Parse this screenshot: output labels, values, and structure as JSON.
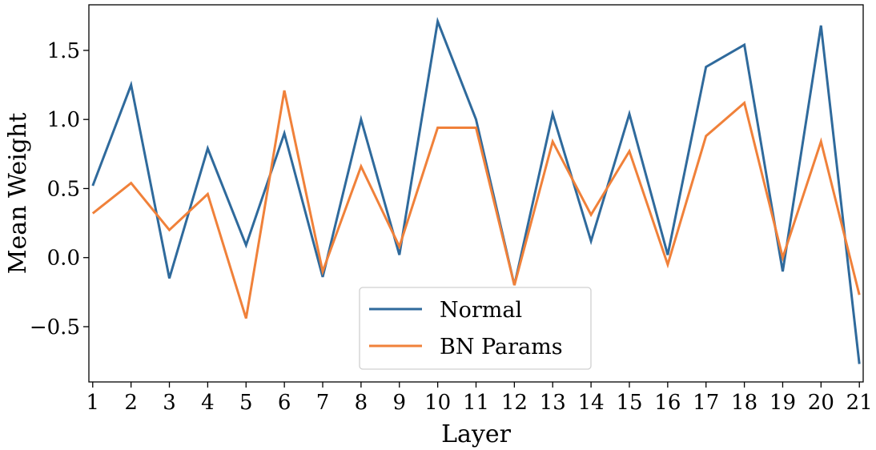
{
  "chart_data": {
    "type": "line",
    "title": "",
    "xlabel": "Layer",
    "ylabel": "Mean Weight",
    "x": [
      1,
      2,
      3,
      4,
      5,
      6,
      7,
      8,
      9,
      10,
      11,
      12,
      13,
      14,
      15,
      16,
      17,
      18,
      19,
      20,
      21
    ],
    "xlim": [
      0.9,
      21.1
    ],
    "ylim": [
      -0.9,
      1.83
    ],
    "yticks": [
      -0.5,
      0.0,
      0.5,
      1.0,
      1.5
    ],
    "ytick_labels": [
      "−0.5",
      "0.0",
      "0.5",
      "1.0",
      "1.5"
    ],
    "xtick_labels": [
      "1",
      "2",
      "3",
      "4",
      "5",
      "6",
      "7",
      "8",
      "9",
      "10",
      "11",
      "12",
      "13",
      "14",
      "15",
      "16",
      "17",
      "18",
      "19",
      "20",
      "21"
    ],
    "grid": false,
    "legend_position": "bottom-center",
    "series": [
      {
        "name": "Normal",
        "color": "#2f6a9c",
        "values": [
          0.52,
          1.25,
          -0.15,
          0.79,
          0.09,
          0.9,
          -0.14,
          1.0,
          0.02,
          1.71,
          1.0,
          -0.2,
          1.04,
          0.12,
          1.04,
          0.02,
          1.38,
          1.54,
          -0.1,
          1.68,
          -0.77
        ]
      },
      {
        "name": "BN Params",
        "color": "#f0813a",
        "values": [
          0.32,
          0.54,
          0.2,
          0.46,
          -0.44,
          1.21,
          -0.1,
          0.66,
          0.08,
          0.94,
          0.94,
          -0.2,
          0.84,
          0.31,
          0.77,
          -0.05,
          0.88,
          1.12,
          0.0,
          0.84,
          -0.27
        ]
      }
    ]
  }
}
